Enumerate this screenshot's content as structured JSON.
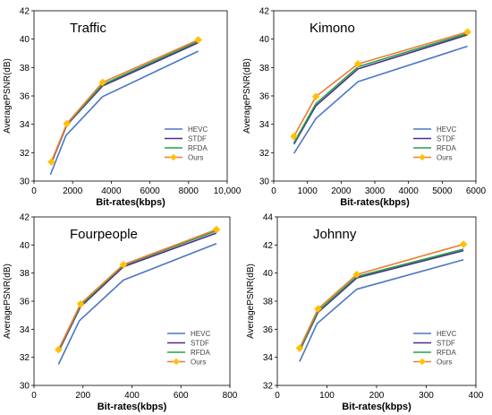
{
  "chart_data": [
    {
      "type": "line",
      "title": "Traffic",
      "xlabel": "Bit-rates(kbps)",
      "ylabel": "AveragePSNR(dB)",
      "xlim": [
        0,
        10000
      ],
      "ylim": [
        30,
        42
      ],
      "xticks": [
        0,
        2000,
        4000,
        6000,
        8000,
        10000
      ],
      "xtick_labels": [
        "0",
        "2000",
        "4000",
        "6000",
        "8000",
        "10,000"
      ],
      "yticks": [
        30,
        32,
        34,
        36,
        38,
        40,
        42
      ],
      "legend_position": "bottom-right",
      "series": [
        {
          "name": "HEVC",
          "color": "#4a76c4",
          "x": [
            850,
            1650,
            3550,
            8500
          ],
          "y": [
            30.45,
            33.2,
            35.95,
            39.15
          ]
        },
        {
          "name": "STDF",
          "color": "#4b2d8c",
          "x": [
            880,
            1700,
            3550,
            8500
          ],
          "y": [
            31.2,
            33.95,
            36.7,
            39.75
          ]
        },
        {
          "name": "RFDA",
          "color": "#23a04b",
          "x": [
            880,
            1700,
            3550,
            8500
          ],
          "y": [
            31.3,
            34.0,
            36.8,
            39.85
          ]
        },
        {
          "name": "Ours",
          "color": "#ed7d31",
          "marker": "diamond",
          "marker_color": "#ffc000",
          "x": [
            900,
            1700,
            3550,
            8500
          ],
          "y": [
            31.35,
            34.05,
            36.95,
            39.95
          ]
        }
      ]
    },
    {
      "type": "line",
      "title": "Kimono",
      "xlabel": "Bit-rates(kbps)",
      "ylabel": "AveragePSNR(dB)",
      "xlim": [
        0,
        6000
      ],
      "ylim": [
        30,
        42
      ],
      "xticks": [
        0,
        1000,
        2000,
        3000,
        4000,
        5000,
        6000
      ],
      "xtick_labels": [
        "0",
        "1000",
        "2000",
        "3000",
        "4000",
        "5000",
        "6000"
      ],
      "yticks": [
        30,
        32,
        34,
        36,
        38,
        40,
        42
      ],
      "legend_position": "bottom-right",
      "series": [
        {
          "name": "HEVC",
          "color": "#4a76c4",
          "x": [
            600,
            1250,
            2500,
            5750
          ],
          "y": [
            31.95,
            34.4,
            37.0,
            39.5
          ]
        },
        {
          "name": "STDF",
          "color": "#4b2d8c",
          "x": [
            600,
            1250,
            2500,
            5750
          ],
          "y": [
            32.6,
            35.3,
            37.9,
            40.3
          ]
        },
        {
          "name": "RFDA",
          "color": "#23a04b",
          "x": [
            600,
            1250,
            2500,
            5750
          ],
          "y": [
            32.7,
            35.45,
            38.05,
            40.4
          ]
        },
        {
          "name": "Ours",
          "color": "#ed7d31",
          "marker": "diamond",
          "marker_color": "#ffc000",
          "x": [
            600,
            1250,
            2500,
            5750
          ],
          "y": [
            33.15,
            35.95,
            38.25,
            40.5
          ]
        }
      ]
    },
    {
      "type": "line",
      "title": "Fourpeople",
      "xlabel": "Bit-rates(kbps)",
      "ylabel": "AveragePSNR(dB)",
      "xlim": [
        0,
        800
      ],
      "ylim": [
        30,
        42
      ],
      "xticks": [
        0,
        200,
        400,
        600,
        800
      ],
      "xtick_labels": [
        "0",
        "200",
        "400",
        "600",
        "800"
      ],
      "yticks": [
        30,
        32,
        34,
        36,
        38,
        40,
        42
      ],
      "legend_position": "bottom-right",
      "series": [
        {
          "name": "HEVC",
          "color": "#4a76c4",
          "x": [
            100,
            185,
            365,
            745
          ],
          "y": [
            31.5,
            34.6,
            37.5,
            40.1
          ]
        },
        {
          "name": "STDF",
          "color": "#4b2d8c",
          "x": [
            100,
            190,
            365,
            745
          ],
          "y": [
            32.4,
            35.6,
            38.45,
            40.85
          ]
        },
        {
          "name": "RFDA",
          "color": "#23a04b",
          "x": [
            100,
            190,
            365,
            745
          ],
          "y": [
            32.5,
            35.7,
            38.55,
            41.0
          ]
        },
        {
          "name": "Ours",
          "color": "#ed7d31",
          "marker": "diamond",
          "marker_color": "#ffc000",
          "x": [
            100,
            190,
            365,
            745
          ],
          "y": [
            32.55,
            35.8,
            38.6,
            41.1
          ]
        }
      ]
    },
    {
      "type": "line",
      "title": "Johnny",
      "xlabel": "Bit-rates(kbps)",
      "ylabel": "AveragePSNR(dB)",
      "xlim": [
        0,
        400
      ],
      "ylim": [
        32,
        44
      ],
      "xticks": [
        0,
        100,
        200,
        300,
        400
      ],
      "xtick_labels": [
        "0",
        "100",
        "200",
        "300",
        "400"
      ],
      "yticks": [
        32,
        34,
        36,
        38,
        40,
        42,
        44
      ],
      "legend_position": "bottom-right",
      "series": [
        {
          "name": "HEVC",
          "color": "#4a76c4",
          "x": [
            45,
            80,
            160,
            375
          ],
          "y": [
            33.7,
            36.4,
            38.85,
            40.95
          ]
        },
        {
          "name": "STDF",
          "color": "#4b2d8c",
          "x": [
            45,
            82,
            160,
            375
          ],
          "y": [
            34.45,
            37.2,
            39.65,
            41.6
          ]
        },
        {
          "name": "RFDA",
          "color": "#23a04b",
          "x": [
            45,
            82,
            160,
            375
          ],
          "y": [
            34.5,
            37.3,
            39.75,
            41.7
          ]
        },
        {
          "name": "Ours",
          "color": "#ed7d31",
          "marker": "diamond",
          "marker_color": "#ffc000",
          "x": [
            45,
            82,
            160,
            375
          ],
          "y": [
            34.65,
            37.45,
            39.9,
            42.05
          ]
        }
      ]
    }
  ]
}
